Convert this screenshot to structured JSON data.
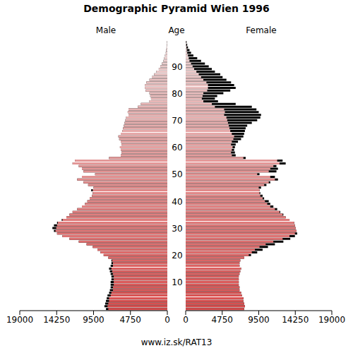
{
  "chart_data": {
    "type": "population_pyramid",
    "title": "Demographic Pyramid Wien 1996",
    "x_labels": {
      "left": "Male",
      "center": "Age",
      "right": "Female"
    },
    "footer": "www.iz.sk/RAT13",
    "orientation": "horizontal",
    "categories": [
      null,
      null,
      null,
      null,
      null,
      null,
      null,
      null,
      null,
      null,
      "10",
      null,
      null,
      null,
      null,
      null,
      null,
      null,
      null,
      null,
      "20",
      null,
      null,
      null,
      null,
      null,
      null,
      null,
      null,
      null,
      "30",
      null,
      null,
      null,
      null,
      null,
      null,
      null,
      null,
      null,
      "40",
      null,
      null,
      null,
      null,
      null,
      null,
      null,
      null,
      null,
      "50",
      null,
      null,
      null,
      null,
      null,
      null,
      null,
      null,
      null,
      "60",
      null,
      null,
      null,
      null,
      null,
      null,
      null,
      null,
      null,
      "70",
      null,
      null,
      null,
      null,
      null,
      null,
      null,
      null,
      null,
      "80",
      null,
      null,
      null,
      null,
      null,
      null,
      null,
      null,
      null,
      "90",
      null,
      null,
      null,
      null,
      null,
      null,
      null,
      null,
      null
    ],
    "series": [
      {
        "name": "Male",
        "color": "#d94c4c",
        "values": [
          7900,
          8100,
          8000,
          7900,
          7800,
          7700,
          7500,
          7400,
          7300,
          7300,
          7300,
          7200,
          7200,
          7300,
          7400,
          7500,
          7300,
          7200,
          7200,
          7600,
          8200,
          8600,
          9000,
          9600,
          10400,
          11400,
          12600,
          13500,
          14200,
          14600,
          14800,
          14600,
          14200,
          13600,
          13000,
          12600,
          12200,
          11600,
          11000,
          10600,
          10300,
          10000,
          9700,
          9600,
          9800,
          9500,
          10200,
          10800,
          11600,
          11000,
          9300,
          10800,
          11000,
          11400,
          12200,
          11900,
          7500,
          6000,
          5900,
          6000,
          6100,
          5900,
          6000,
          6200,
          6300,
          6000,
          5800,
          5700,
          5600,
          5500,
          5400,
          5300,
          5000,
          5100,
          5000,
          3800,
          3400,
          2300,
          2100,
          2200,
          2300,
          2800,
          2900,
          2900,
          2700,
          2300,
          2000,
          1700,
          1400,
          1100,
          900,
          700,
          500,
          400,
          300,
          200,
          150,
          100,
          60,
          40
        ]
      },
      {
        "name": "Female",
        "color": "#d94c4c",
        "values": [
          7600,
          7700,
          7600,
          7500,
          7500,
          7300,
          7200,
          7000,
          7000,
          6900,
          6900,
          6900,
          6900,
          7000,
          7100,
          7200,
          7000,
          7000,
          7100,
          7600,
          8500,
          9300,
          10000,
          10700,
          11600,
          12700,
          13600,
          14200,
          14500,
          14400,
          14300,
          14200,
          14100,
          13500,
          13000,
          12700,
          12300,
          11900,
          11400,
          11000,
          10800,
          10200,
          10000,
          9700,
          9600,
          9800,
          10500,
          11000,
          12000,
          11600,
          9600,
          11800,
          12000,
          11800,
          13000,
          12600,
          7800,
          6500,
          6400,
          6300,
          6400,
          6500,
          6800,
          7200,
          7500,
          7600,
          7700,
          7800,
          8000,
          8600,
          9300,
          9700,
          9800,
          9500,
          9200,
          8600,
          6500,
          4200,
          3800,
          4100,
          4900,
          5800,
          6500,
          6300,
          5900,
          5300,
          4800,
          4500,
          3800,
          3400,
          3000,
          2500,
          2000,
          1500,
          1000,
          700,
          500,
          300,
          200,
          120
        ]
      }
    ],
    "xlim": [
      0,
      19000
    ],
    "xticks": [
      0,
      4750,
      9500,
      14250,
      19000
    ]
  }
}
